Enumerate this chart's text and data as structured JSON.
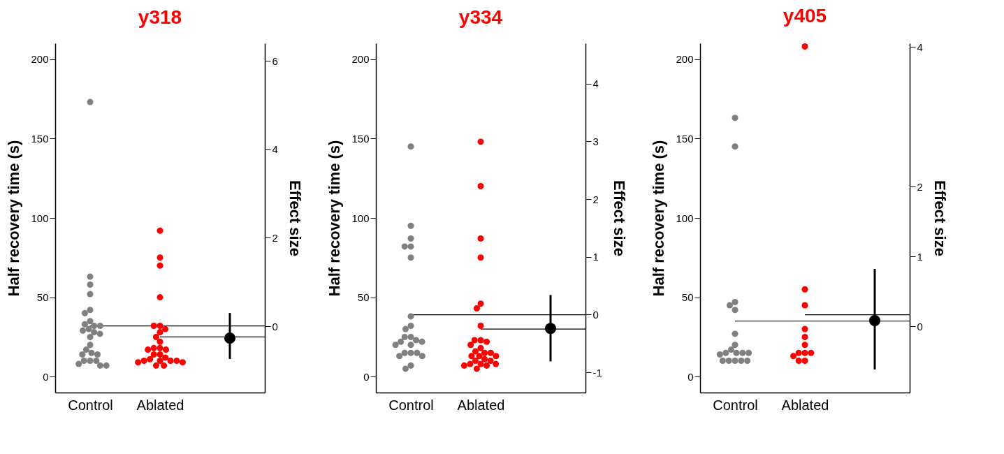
{
  "chart_data": [
    {
      "type": "scatter",
      "title": "y318",
      "ylabel": "Half recovery time (s)",
      "y2label": "Effect size",
      "categories": [
        "Control",
        "Ablated",
        null
      ],
      "ylim": [
        -10,
        210
      ],
      "yticks": [
        0,
        50,
        100,
        150,
        200
      ],
      "y2lim": [
        -1.5,
        6.4
      ],
      "y2ticks": [
        0,
        2,
        4,
        6
      ],
      "marker": "circle",
      "series": [
        {
          "color": "#808080",
          "x": [
            "Control",
            "Control",
            "Control",
            "Control",
            "Control",
            "Control",
            "Control",
            "Control",
            "Control",
            "Control",
            "Control",
            "Control",
            "Control",
            "Control",
            "Control",
            "Control",
            "Control",
            "Control",
            "Control",
            "Control",
            "Control",
            "Control",
            "Control",
            "Control",
            "Control",
            "Control"
          ],
          "values": [
            173,
            63,
            58,
            52,
            42,
            40,
            35,
            33,
            32,
            32,
            30,
            29,
            28,
            27,
            25,
            20,
            17,
            15,
            14,
            14,
            10,
            10,
            10,
            8,
            7,
            7
          ]
        },
        {
          "color": "#ff0000",
          "x": [
            "Ablated",
            "Ablated",
            "Ablated",
            "Ablated",
            "Ablated",
            "Ablated",
            "Ablated",
            "Ablated",
            "Ablated",
            "Ablated",
            "Ablated",
            "Ablated",
            "Ablated",
            "Ablated",
            "Ablated",
            "Ablated",
            "Ablated",
            "Ablated",
            "Ablated",
            "Ablated",
            "Ablated",
            "Ablated",
            "Ablated",
            "Ablated",
            "Ablated",
            "Ablated"
          ],
          "values": [
            92,
            75,
            70,
            50,
            32,
            32,
            30,
            28,
            25,
            22,
            18,
            18,
            17,
            17,
            14,
            14,
            12,
            11,
            10,
            10,
            10,
            10,
            9,
            9,
            7,
            7
          ]
        },
        {
          "axis": "y2",
          "color": "#000000",
          "values": [
            null,
            null,
            -0.27
          ],
          "errors": [
            null,
            null,
            [
              -0.74,
              0.3
            ]
          ]
        }
      ],
      "ref_lines": [
        {
          "axis": "y",
          "value": 32
        },
        {
          "axis": "y",
          "value": 25
        }
      ]
    },
    {
      "type": "scatter",
      "title": "y334",
      "ylabel": "Half recovery time (s)",
      "y2label": "Effect size",
      "categories": [
        "Control",
        "Ablated",
        null
      ],
      "ylim": [
        -10,
        210
      ],
      "yticks": [
        0,
        50,
        100,
        150,
        200
      ],
      "y2lim": [
        -1.35,
        4.7
      ],
      "y2ticks": [
        -1,
        0,
        1,
        2,
        3,
        4
      ],
      "marker": "circle",
      "series": [
        {
          "color": "#808080",
          "x": [
            "Control",
            "Control",
            "Control",
            "Control",
            "Control",
            "Control",
            "Control",
            "Control",
            "Control",
            "Control",
            "Control",
            "Control",
            "Control",
            "Control",
            "Control",
            "Control",
            "Control",
            "Control",
            "Control",
            "Control",
            "Control",
            "Control",
            "Control"
          ],
          "values": [
            145,
            95,
            87,
            82,
            82,
            75,
            38,
            32,
            30,
            25,
            25,
            23,
            22,
            22,
            20,
            20,
            15,
            15,
            15,
            13,
            13,
            7,
            5
          ]
        },
        {
          "color": "#ff0000",
          "x": [
            "Ablated",
            "Ablated",
            "Ablated",
            "Ablated",
            "Ablated",
            "Ablated",
            "Ablated",
            "Ablated",
            "Ablated",
            "Ablated",
            "Ablated",
            "Ablated",
            "Ablated",
            "Ablated",
            "Ablated",
            "Ablated",
            "Ablated",
            "Ablated",
            "Ablated",
            "Ablated",
            "Ablated",
            "Ablated",
            "Ablated",
            "Ablated",
            "Ablated",
            "Ablated",
            "Ablated"
          ],
          "values": [
            148,
            120,
            87,
            75,
            46,
            43,
            32,
            23,
            23,
            22,
            20,
            18,
            16,
            15,
            15,
            13,
            13,
            13,
            11,
            10,
            10,
            8,
            8,
            8,
            7,
            7,
            5
          ]
        },
        {
          "axis": "y2",
          "color": "#000000",
          "values": [
            null,
            null,
            -0.24
          ],
          "errors": [
            null,
            null,
            [
              -0.81,
              0.34
            ]
          ]
        }
      ],
      "ref_lines": [
        {
          "axis": "y",
          "value": 39
        },
        {
          "axis": "y",
          "value": 30
        }
      ]
    },
    {
      "type": "scatter",
      "title": "y405",
      "ylabel": "Half recovery time (s)",
      "y2label": "Effect size",
      "categories": [
        "Control",
        "Ablated",
        null
      ],
      "ylim": [
        -10,
        210
      ],
      "yticks": [
        0,
        50,
        100,
        150,
        200
      ],
      "y2lim": [
        -0.95,
        4.05
      ],
      "y2ticks": [
        0,
        1,
        2,
        4
      ],
      "marker": "circle",
      "series": [
        {
          "color": "#808080",
          "x": [
            "Control",
            "Control",
            "Control",
            "Control",
            "Control",
            "Control",
            "Control",
            "Control",
            "Control",
            "Control",
            "Control",
            "Control",
            "Control",
            "Control",
            "Control",
            "Control",
            "Control",
            "Control"
          ],
          "values": [
            163,
            145,
            47,
            45,
            42,
            27,
            20,
            17,
            15,
            15,
            15,
            15,
            14,
            10,
            10,
            10,
            10,
            10
          ]
        },
        {
          "color": "#ff0000",
          "x": [
            "Ablated",
            "Ablated",
            "Ablated",
            "Ablated",
            "Ablated",
            "Ablated",
            "Ablated",
            "Ablated",
            "Ablated",
            "Ablated",
            "Ablated",
            "Ablated"
          ],
          "values": [
            208,
            55,
            45,
            30,
            25,
            20,
            15,
            15,
            15,
            13,
            10,
            10
          ]
        },
        {
          "axis": "y2",
          "color": "#000000",
          "values": [
            null,
            null,
            0.08
          ],
          "errors": [
            null,
            null,
            [
              -0.62,
              0.82
            ]
          ]
        }
      ],
      "ref_lines": [
        {
          "axis": "y",
          "value": 35
        },
        {
          "axis": "y",
          "value": 39
        }
      ]
    }
  ]
}
